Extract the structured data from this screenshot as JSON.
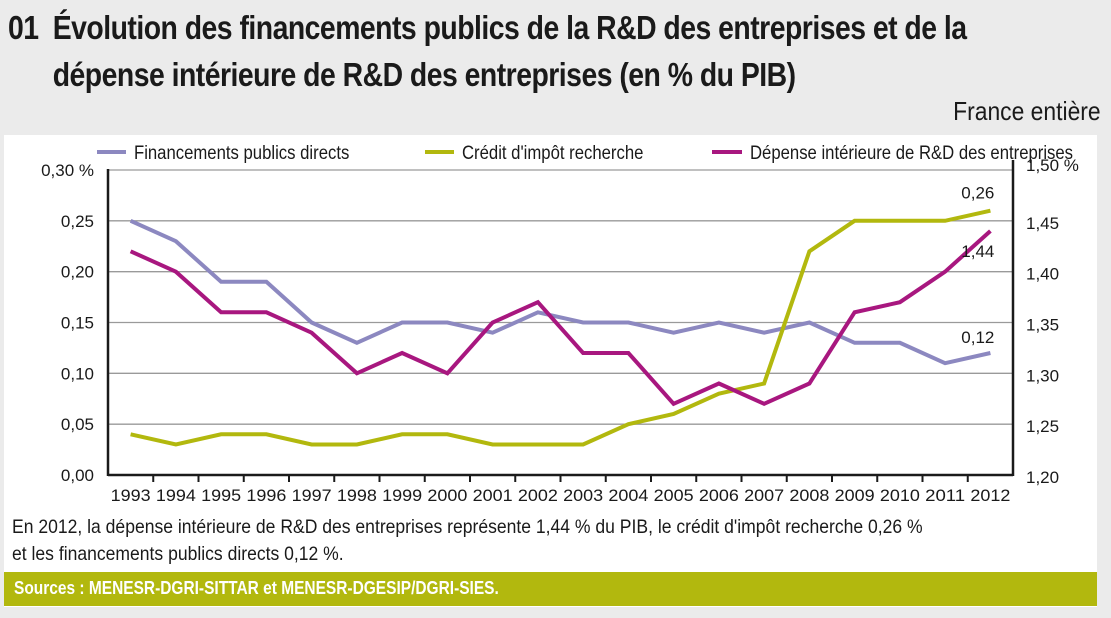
{
  "header": {
    "number": "01",
    "title_line1": "Évolution des financements publics de la R&D des entreprises et de la",
    "title_line2": "dépense intérieure de R&D des entreprises (en % du PIB)",
    "scope": "France entière"
  },
  "caption": {
    "line1": "En 2012, la dépense intérieure de R&D des entreprises représente 1,44 % du PIB, le crédit d'impôt recherche 0,26 %",
    "line2": "et les financements publics directs 0,12 %."
  },
  "sources": "Sources : MENESR-DGRI-SITTAR et MENESR-DGESIP/DGRI-SIES.",
  "colors": {
    "financements": "#8c88c0",
    "credit": "#b2b80e",
    "depense": "#a8177f",
    "grid": "#9a9a9a",
    "axis": "#1a1a1a",
    "sources_bar": "#b2b80e"
  },
  "chart_data": {
    "type": "line",
    "title": "Évolution des financements publics de la R&D des entreprises et de la dépense intérieure de R&D des entreprises (en % du PIB)",
    "xlabel": "",
    "ylabel": "",
    "categories": [
      "1993",
      "1994",
      "1995",
      "1996",
      "1997",
      "1998",
      "1999",
      "2000",
      "2001",
      "2002",
      "2003",
      "2004",
      "2005",
      "2006",
      "2007",
      "2008",
      "2009",
      "2010",
      "2011",
      "2012"
    ],
    "y_left": {
      "range": [
        0,
        0.3
      ],
      "ticks": [
        "0,00",
        "0,05",
        "0,10",
        "0,15",
        "0,20",
        "0,25",
        "0,30 %"
      ],
      "tick_values": [
        0,
        0.05,
        0.1,
        0.15,
        0.2,
        0.25,
        0.3
      ]
    },
    "y_right": {
      "range": [
        1.2,
        1.5
      ],
      "ticks": [
        "1,20",
        "1,25",
        "1,30",
        "1,35",
        "1,40",
        "1,45",
        "1,50 %"
      ],
      "tick_values": [
        1.2,
        1.25,
        1.3,
        1.35,
        1.4,
        1.45,
        1.5
      ]
    },
    "grid": true,
    "legend_position": "top",
    "series": [
      {
        "key": "financements",
        "name": "Financements publics directs",
        "axis": "left",
        "values": [
          0.25,
          0.23,
          0.19,
          0.19,
          0.15,
          0.13,
          0.15,
          0.15,
          0.14,
          0.16,
          0.15,
          0.15,
          0.14,
          0.15,
          0.14,
          0.15,
          0.13,
          0.13,
          0.11,
          0.12
        ],
        "end_label": "0,12"
      },
      {
        "key": "credit",
        "name": "Crédit d'impôt recherche",
        "axis": "left",
        "values": [
          0.04,
          0.03,
          0.04,
          0.04,
          0.03,
          0.03,
          0.04,
          0.04,
          0.03,
          0.03,
          0.03,
          0.05,
          0.06,
          0.08,
          0.09,
          0.22,
          0.25,
          0.25,
          0.25,
          0.26
        ],
        "end_label": "0,26"
      },
      {
        "key": "depense",
        "name": "Dépense intérieure de R&D des entreprises",
        "axis": "right",
        "values": [
          1.42,
          1.4,
          1.36,
          1.36,
          1.34,
          1.3,
          1.32,
          1.3,
          1.35,
          1.37,
          1.32,
          1.32,
          1.27,
          1.29,
          1.27,
          1.29,
          1.36,
          1.37,
          1.4,
          1.44
        ],
        "end_label": "1,44"
      }
    ]
  }
}
